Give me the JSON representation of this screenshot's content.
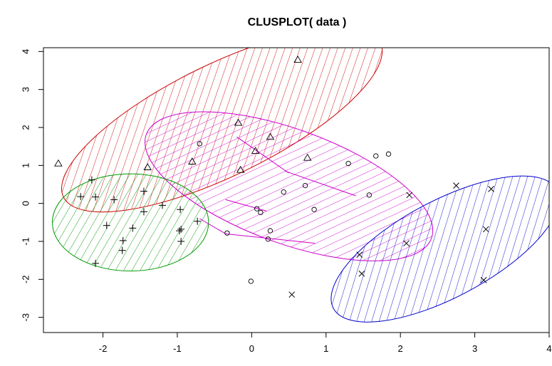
{
  "chart_data": {
    "type": "scatter",
    "title": "CLUSPLOT( data )",
    "xlabel": "",
    "ylabel": "",
    "xlim": [
      -2.8,
      4.0
    ],
    "ylim": [
      -3.4,
      4.1
    ],
    "xticks": [
      -2,
      -1,
      0,
      1,
      2,
      3,
      4
    ],
    "yticks": [
      -3,
      -2,
      -1,
      0,
      1,
      2,
      3,
      4
    ],
    "grid": false,
    "clusters": [
      {
        "color": "#cc0000",
        "marker": "triangle",
        "ellipse": {
          "center": [
            -0.4,
            2.2
          ],
          "rx": 2.37,
          "ry": 1.47,
          "rotation_deg": -26,
          "hatch_angle_deg": 45
        },
        "points": [
          [
            -2.6,
            1.05
          ],
          [
            0.62,
            3.78
          ],
          [
            -0.18,
            2.12
          ],
          [
            0.25,
            1.75
          ],
          [
            0.05,
            1.38
          ],
          [
            -1.4,
            0.95
          ],
          [
            -0.8,
            1.1
          ],
          [
            0.75,
            1.2
          ],
          [
            -0.15,
            0.88
          ]
        ]
      },
      {
        "color": "#cc00cc",
        "marker": "circle",
        "ellipse": {
          "center": [
            0.5,
            0.45
          ],
          "rx": 2.04,
          "ry": 1.5,
          "rotation_deg": 20,
          "hatch_angle_deg": 45
        },
        "points": [
          [
            -0.7,
            1.57
          ],
          [
            1.3,
            1.05
          ],
          [
            1.67,
            1.25
          ],
          [
            1.84,
            1.3
          ],
          [
            0.72,
            0.47
          ],
          [
            0.43,
            0.3
          ],
          [
            1.58,
            0.22
          ],
          [
            0.07,
            -0.14
          ],
          [
            0.12,
            -0.24
          ],
          [
            0.84,
            -0.16
          ],
          [
            -0.33,
            -0.78
          ],
          [
            0.25,
            -0.72
          ],
          [
            0.22,
            -0.94
          ],
          [
            -0.01,
            -2.05
          ]
        ]
      },
      {
        "color": "#009900",
        "marker": "plus",
        "ellipse": {
          "center": [
            -1.63,
            -0.5
          ],
          "rx": 1.05,
          "ry": 1.28,
          "rotation_deg": 0,
          "hatch_angle_deg": 60
        },
        "points": [
          [
            -2.15,
            0.62
          ],
          [
            -2.3,
            0.18
          ],
          [
            -2.1,
            0.17
          ],
          [
            -1.45,
            0.32
          ],
          [
            -1.85,
            0.1
          ],
          [
            -1.2,
            -0.05
          ],
          [
            -1.45,
            -0.22
          ],
          [
            -0.96,
            -0.16
          ],
          [
            -0.73,
            -0.47
          ],
          [
            -1.95,
            -0.58
          ],
          [
            -1.6,
            -0.65
          ],
          [
            -0.95,
            -0.68
          ],
          [
            -0.97,
            -0.72
          ],
          [
            -1.73,
            -0.98
          ],
          [
            -0.95,
            -1.0
          ],
          [
            -1.74,
            -1.24
          ],
          [
            -2.1,
            -1.58
          ]
        ]
      },
      {
        "color": "#0000cc",
        "marker": "cross",
        "ellipse": {
          "center": [
            2.6,
            -1.2
          ],
          "rx": 1.7,
          "ry": 1.27,
          "rotation_deg": -28,
          "hatch_angle_deg": 45
        },
        "points": [
          [
            2.75,
            0.47
          ],
          [
            3.22,
            0.38
          ],
          [
            2.12,
            0.22
          ],
          [
            3.15,
            -0.68
          ],
          [
            2.08,
            -1.05
          ],
          [
            1.45,
            -1.35
          ],
          [
            1.48,
            -1.85
          ],
          [
            3.12,
            -2.02
          ],
          [
            0.54,
            -2.4
          ]
        ]
      }
    ],
    "connectors": [
      [
        [
          -0.2,
          1.75
        ],
        [
          0.5,
          0.8
        ]
      ],
      [
        [
          0.45,
          0.85
        ],
        [
          1.4,
          0.2
        ]
      ],
      [
        [
          -0.35,
          0.1
        ],
        [
          0.2,
          -0.2
        ]
      ],
      [
        [
          -0.35,
          -0.8
        ],
        [
          0.85,
          -1.05
        ]
      ],
      [
        [
          -0.7,
          -0.4
        ],
        [
          -0.35,
          -0.8
        ]
      ]
    ]
  }
}
